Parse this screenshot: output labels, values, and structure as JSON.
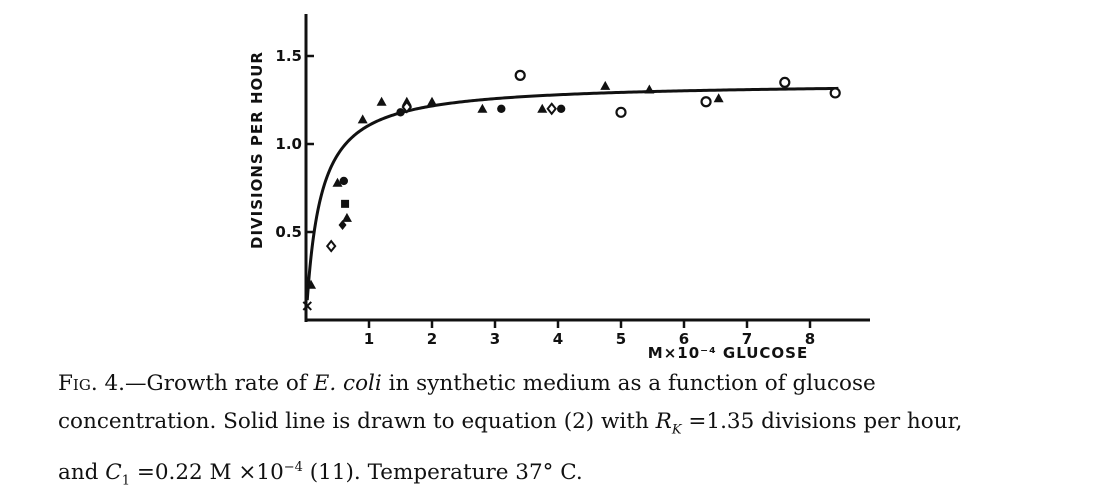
{
  "figure": {
    "caption": {
      "label": "Fig. 4.",
      "dash": "—",
      "line1": [
        "Growth rate of ",
        "E. coli",
        " in synthetic medium as a function of glucose"
      ],
      "line2": [
        "concentration. Solid line is drawn to equation (2) with ",
        "R",
        "K",
        " =1.35 divisions per hour,"
      ],
      "line3": [
        "and ",
        "C",
        "1",
        " =0.22 M ×10",
        "−4",
        " (11). Temperature 37° C."
      ]
    }
  },
  "chart_data": {
    "type": "scatter",
    "title": "",
    "xlabel": "M×10⁻⁴ GLUCOSE",
    "ylabel": "DIVISIONS PER HOUR",
    "xlim": [
      0,
      8.5
    ],
    "ylim": [
      0,
      1.7
    ],
    "x_ticks": [
      1,
      2,
      3,
      4,
      5,
      6,
      7,
      8
    ],
    "x_tick_labels": [
      "1",
      "2",
      "3",
      "4",
      "5",
      "6",
      "7",
      "8"
    ],
    "y_ticks": [
      0.5,
      1.0,
      1.5
    ],
    "y_tick_labels": [
      "0.5",
      "1.0",
      "1.5"
    ],
    "grid": false,
    "legend": "none",
    "fit_curve": {
      "equation": "R = R_K * C / (C1 + C)",
      "R_K": 1.35,
      "C1": 0.22,
      "style": "solid"
    },
    "series": [
      {
        "marker": "triangle",
        "points": [
          [
            0.08,
            0.2
          ],
          [
            0.5,
            0.78
          ],
          [
            0.65,
            0.58
          ],
          [
            0.9,
            1.14
          ],
          [
            1.2,
            1.24
          ],
          [
            1.6,
            1.24
          ],
          [
            2.0,
            1.24
          ],
          [
            2.8,
            1.2
          ],
          [
            3.75,
            1.2
          ],
          [
            4.75,
            1.33
          ],
          [
            5.45,
            1.31
          ],
          [
            6.55,
            1.26
          ]
        ]
      },
      {
        "marker": "filled-circle",
        "points": [
          [
            0.6,
            0.79
          ],
          [
            1.5,
            1.18
          ],
          [
            3.1,
            1.2
          ],
          [
            4.05,
            1.2
          ]
        ]
      },
      {
        "marker": "filled-square",
        "points": [
          [
            0.62,
            0.66
          ]
        ]
      },
      {
        "marker": "filled-diamond",
        "points": [
          [
            0.58,
            0.54
          ]
        ]
      },
      {
        "marker": "open-diamond",
        "points": [
          [
            0.4,
            0.42
          ],
          [
            1.6,
            1.21
          ],
          [
            3.9,
            1.2
          ]
        ]
      },
      {
        "marker": "open-circle",
        "points": [
          [
            3.4,
            1.39
          ],
          [
            5.0,
            1.18
          ],
          [
            6.35,
            1.24
          ],
          [
            7.6,
            1.35
          ],
          [
            8.4,
            1.29
          ]
        ]
      },
      {
        "marker": "cross",
        "points": [
          [
            0.02,
            0.08
          ]
        ]
      }
    ]
  }
}
